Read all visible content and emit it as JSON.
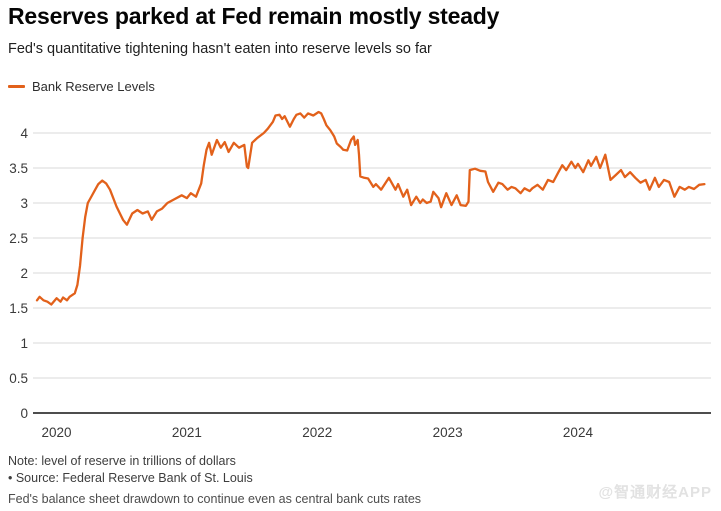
{
  "header": {
    "title": "Reserves parked at Fed remain mostly steady",
    "subtitle": "Fed's quantitative tightening hasn't eaten into reserve levels so far"
  },
  "legend": {
    "series_label": "Bank Reserve Levels"
  },
  "footer": {
    "note": "Note: level of reserve in trillions of dollars",
    "source": "• Source: Federal Reserve Bank of St. Louis",
    "caption": "Fed's balance sheet drawdown to continue even as central bank cuts rates",
    "watermark": "@智通财经APP"
  },
  "colors": {
    "line": "#E2611B",
    "grid": "#D8D8D8",
    "axis": "#4D4D4D",
    "tick_text": "#3A3A3A"
  },
  "chart_data": {
    "type": "line",
    "title": "Reserves parked at Fed remain mostly steady",
    "subtitle": "Fed's quantitative tightening hasn't eaten into reserve levels so far",
    "units": "trillions of dollars",
    "grid": "horizontal",
    "legend_position": "top-left",
    "xlim": [
      2019.85,
      2024.99
    ],
    "ylim": [
      0,
      4.45
    ],
    "x_ticks": [
      2020,
      2021,
      2022,
      2023,
      2024
    ],
    "x_tick_labels": [
      "2020",
      "2021",
      "2022",
      "2023",
      "2024"
    ],
    "y_ticks": [
      0,
      0.5,
      1,
      1.5,
      2,
      2.5,
      3,
      3.5,
      4
    ],
    "y_tick_labels": [
      "0",
      "0.5",
      "1",
      "1.5",
      "2",
      "2.5",
      "3",
      "3.5",
      "4"
    ],
    "series": [
      {
        "name": "Bank Reserve Levels",
        "color": "#E2611B",
        "points": [
          [
            2019.85,
            1.61
          ],
          [
            2019.87,
            1.66
          ],
          [
            2019.9,
            1.61
          ],
          [
            2019.93,
            1.59
          ],
          [
            2019.96,
            1.55
          ],
          [
            2020.0,
            1.64
          ],
          [
            2020.03,
            1.59
          ],
          [
            2020.05,
            1.65
          ],
          [
            2020.08,
            1.61
          ],
          [
            2020.1,
            1.66
          ],
          [
            2020.14,
            1.71
          ],
          [
            2020.16,
            1.83
          ],
          [
            2020.18,
            2.1
          ],
          [
            2020.2,
            2.5
          ],
          [
            2020.22,
            2.8
          ],
          [
            2020.24,
            3.0
          ],
          [
            2020.27,
            3.1
          ],
          [
            2020.29,
            3.17
          ],
          [
            2020.32,
            3.27
          ],
          [
            2020.35,
            3.32
          ],
          [
            2020.38,
            3.28
          ],
          [
            2020.41,
            3.19
          ],
          [
            2020.46,
            2.95
          ],
          [
            2020.51,
            2.76
          ],
          [
            2020.54,
            2.69
          ],
          [
            2020.58,
            2.85
          ],
          [
            2020.62,
            2.9
          ],
          [
            2020.66,
            2.85
          ],
          [
            2020.7,
            2.88
          ],
          [
            2020.73,
            2.76
          ],
          [
            2020.77,
            2.88
          ],
          [
            2020.81,
            2.92
          ],
          [
            2020.85,
            3.0
          ],
          [
            2020.9,
            3.05
          ],
          [
            2020.96,
            3.11
          ],
          [
            2021.0,
            3.07
          ],
          [
            2021.03,
            3.14
          ],
          [
            2021.07,
            3.09
          ],
          [
            2021.11,
            3.28
          ],
          [
            2021.13,
            3.54
          ],
          [
            2021.15,
            3.76
          ],
          [
            2021.17,
            3.86
          ],
          [
            2021.19,
            3.69
          ],
          [
            2021.23,
            3.9
          ],
          [
            2021.26,
            3.79
          ],
          [
            2021.29,
            3.87
          ],
          [
            2021.32,
            3.73
          ],
          [
            2021.36,
            3.86
          ],
          [
            2021.4,
            3.79
          ],
          [
            2021.44,
            3.83
          ],
          [
            2021.46,
            3.52
          ],
          [
            2021.47,
            3.5
          ],
          [
            2021.5,
            3.86
          ],
          [
            2021.54,
            3.93
          ],
          [
            2021.59,
            4.0
          ],
          [
            2021.62,
            4.06
          ],
          [
            2021.66,
            4.16
          ],
          [
            2021.68,
            4.25
          ],
          [
            2021.71,
            4.26
          ],
          [
            2021.73,
            4.2
          ],
          [
            2021.75,
            4.24
          ],
          [
            2021.79,
            4.09
          ],
          [
            2021.82,
            4.2
          ],
          [
            2021.84,
            4.26
          ],
          [
            2021.87,
            4.28
          ],
          [
            2021.9,
            4.22
          ],
          [
            2021.93,
            4.28
          ],
          [
            2021.97,
            4.25
          ],
          [
            2022.01,
            4.3
          ],
          [
            2022.03,
            4.28
          ],
          [
            2022.05,
            4.2
          ],
          [
            2022.07,
            4.11
          ],
          [
            2022.1,
            4.04
          ],
          [
            2022.13,
            3.95
          ],
          [
            2022.15,
            3.85
          ],
          [
            2022.18,
            3.8
          ],
          [
            2022.2,
            3.76
          ],
          [
            2022.23,
            3.75
          ],
          [
            2022.26,
            3.9
          ],
          [
            2022.28,
            3.95
          ],
          [
            2022.29,
            3.83
          ],
          [
            2022.31,
            3.9
          ],
          [
            2022.32,
            3.69
          ],
          [
            2022.33,
            3.38
          ],
          [
            2022.36,
            3.36
          ],
          [
            2022.39,
            3.35
          ],
          [
            2022.43,
            3.23
          ],
          [
            2022.45,
            3.27
          ],
          [
            2022.49,
            3.19
          ],
          [
            2022.55,
            3.36
          ],
          [
            2022.6,
            3.19
          ],
          [
            2022.62,
            3.27
          ],
          [
            2022.66,
            3.09
          ],
          [
            2022.69,
            3.19
          ],
          [
            2022.72,
            2.97
          ],
          [
            2022.76,
            3.09
          ],
          [
            2022.79,
            3.0
          ],
          [
            2022.81,
            3.05
          ],
          [
            2022.84,
            3.0
          ],
          [
            2022.87,
            3.02
          ],
          [
            2022.89,
            3.16
          ],
          [
            2022.93,
            3.07
          ],
          [
            2022.95,
            2.94
          ],
          [
            2022.99,
            3.14
          ],
          [
            2023.03,
            2.97
          ],
          [
            2023.07,
            3.11
          ],
          [
            2023.1,
            2.97
          ],
          [
            2023.14,
            2.96
          ],
          [
            2023.16,
            3.02
          ],
          [
            2023.17,
            3.47
          ],
          [
            2023.21,
            3.49
          ],
          [
            2023.25,
            3.46
          ],
          [
            2023.29,
            3.45
          ],
          [
            2023.31,
            3.3
          ],
          [
            2023.35,
            3.16
          ],
          [
            2023.39,
            3.29
          ],
          [
            2023.42,
            3.27
          ],
          [
            2023.46,
            3.19
          ],
          [
            2023.49,
            3.23
          ],
          [
            2023.52,
            3.21
          ],
          [
            2023.56,
            3.14
          ],
          [
            2023.59,
            3.21
          ],
          [
            2023.63,
            3.17
          ],
          [
            2023.65,
            3.21
          ],
          [
            2023.69,
            3.26
          ],
          [
            2023.73,
            3.19
          ],
          [
            2023.77,
            3.33
          ],
          [
            2023.81,
            3.3
          ],
          [
            2023.85,
            3.44
          ],
          [
            2023.88,
            3.54
          ],
          [
            2023.91,
            3.47
          ],
          [
            2023.95,
            3.59
          ],
          [
            2023.98,
            3.5
          ],
          [
            2024.0,
            3.56
          ],
          [
            2024.04,
            3.44
          ],
          [
            2024.08,
            3.61
          ],
          [
            2024.1,
            3.53
          ],
          [
            2024.14,
            3.66
          ],
          [
            2024.17,
            3.5
          ],
          [
            2024.21,
            3.69
          ],
          [
            2024.25,
            3.33
          ],
          [
            2024.29,
            3.4
          ],
          [
            2024.33,
            3.47
          ],
          [
            2024.36,
            3.37
          ],
          [
            2024.4,
            3.44
          ],
          [
            2024.44,
            3.36
          ],
          [
            2024.48,
            3.29
          ],
          [
            2024.52,
            3.33
          ],
          [
            2024.55,
            3.19
          ],
          [
            2024.59,
            3.36
          ],
          [
            2024.62,
            3.23
          ],
          [
            2024.66,
            3.33
          ],
          [
            2024.7,
            3.3
          ],
          [
            2024.74,
            3.09
          ],
          [
            2024.78,
            3.23
          ],
          [
            2024.82,
            3.19
          ],
          [
            2024.85,
            3.23
          ],
          [
            2024.89,
            3.2
          ],
          [
            2024.93,
            3.26
          ],
          [
            2024.97,
            3.27
          ]
        ]
      }
    ]
  }
}
